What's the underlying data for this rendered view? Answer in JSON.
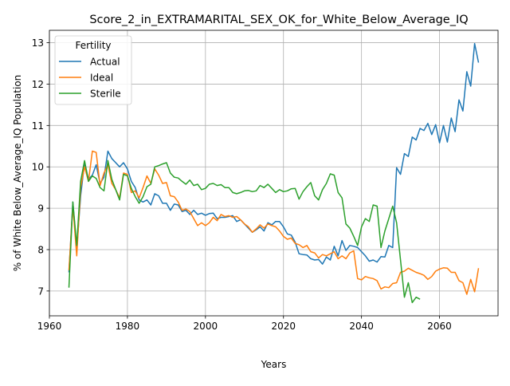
{
  "chart_data": {
    "type": "line",
    "title": "Score_2_in_EXTRAMARITAL_SEX_OK_for_White_Below_Average_IQ",
    "xlabel": "Years",
    "ylabel": "% of White Below_Average_IQ Population",
    "xlim": [
      1960,
      2075
    ],
    "ylim": [
      6.4,
      13.3
    ],
    "xticks": [
      1960,
      1980,
      2000,
      2020,
      2040,
      2060
    ],
    "yticks": [
      7,
      8,
      9,
      10,
      11,
      12,
      13
    ],
    "grid": true,
    "legend": {
      "title": "Fertility",
      "placement": "upper-left"
    },
    "series": [
      {
        "name": "Actual",
        "color": "#1f77b4",
        "x": [
          1965,
          1966,
          1967,
          1968,
          1969,
          1970,
          1971,
          1972,
          1973,
          1974,
          1975,
          1976,
          1977,
          1978,
          1979,
          1980,
          1981,
          1982,
          1983,
          1984,
          1985,
          1986,
          1987,
          1988,
          1989,
          1990,
          1991,
          1992,
          1993,
          1994,
          1995,
          1996,
          1997,
          1998,
          1999,
          2000,
          2001,
          2002,
          2003,
          2004,
          2005,
          2006,
          2007,
          2008,
          2009,
          2010,
          2011,
          2012,
          2013,
          2014,
          2015,
          2016,
          2017,
          2018,
          2019,
          2020,
          2021,
          2022,
          2023,
          2024,
          2025,
          2026,
          2027,
          2028,
          2029,
          2030,
          2031,
          2032,
          2033,
          2034,
          2035,
          2036,
          2037,
          2038,
          2039,
          2040,
          2041,
          2042,
          2043,
          2044,
          2045,
          2046,
          2047,
          2048,
          2049,
          2050,
          2051,
          2052,
          2053,
          2054,
          2055,
          2056,
          2057,
          2058,
          2059,
          2060,
          2061,
          2062,
          2063,
          2064,
          2065,
          2066,
          2067,
          2068,
          2069,
          2070
        ],
        "y": [
          7.45,
          9.15,
          8.0,
          9.3,
          10.1,
          9.7,
          9.8,
          10.05,
          9.6,
          9.75,
          10.38,
          10.2,
          10.1,
          10.0,
          10.1,
          9.95,
          9.65,
          9.5,
          9.2,
          9.15,
          9.2,
          9.08,
          9.35,
          9.3,
          9.12,
          9.12,
          8.95,
          9.1,
          9.08,
          8.92,
          8.95,
          8.85,
          8.95,
          8.85,
          8.88,
          8.83,
          8.87,
          8.88,
          8.75,
          8.78,
          8.78,
          8.8,
          8.82,
          8.68,
          8.72,
          8.62,
          8.52,
          8.42,
          8.48,
          8.55,
          8.45,
          8.65,
          8.6,
          8.68,
          8.68,
          8.55,
          8.38,
          8.35,
          8.18,
          7.9,
          7.88,
          7.87,
          7.78,
          7.75,
          7.76,
          7.65,
          7.82,
          7.75,
          8.08,
          7.85,
          8.22,
          7.98,
          8.1,
          8.08,
          8.05,
          7.95,
          7.85,
          7.72,
          7.75,
          7.7,
          7.83,
          7.82,
          8.1,
          8.05,
          9.98,
          9.82,
          10.32,
          10.25,
          10.72,
          10.65,
          10.93,
          10.88,
          11.05,
          10.78,
          11.02,
          10.58,
          11.0,
          10.6,
          11.18,
          10.85,
          11.62,
          11.35,
          12.3,
          11.95,
          12.98,
          12.52
        ]
      },
      {
        "name": "Ideal",
        "color": "#ff7f0e",
        "x": [
          1965,
          1966,
          1967,
          1968,
          1969,
          1970,
          1971,
          1972,
          1973,
          1974,
          1975,
          1976,
          1977,
          1978,
          1979,
          1980,
          1981,
          1982,
          1983,
          1984,
          1985,
          1986,
          1987,
          1988,
          1989,
          1990,
          1991,
          1992,
          1993,
          1994,
          1995,
          1996,
          1997,
          1998,
          1999,
          2000,
          2001,
          2002,
          2003,
          2004,
          2005,
          2006,
          2007,
          2008,
          2009,
          2010,
          2011,
          2012,
          2013,
          2014,
          2015,
          2016,
          2017,
          2018,
          2019,
          2020,
          2021,
          2022,
          2023,
          2024,
          2025,
          2026,
          2027,
          2028,
          2029,
          2030,
          2031,
          2032,
          2033,
          2034,
          2035,
          2036,
          2037,
          2038,
          2039,
          2040,
          2041,
          2042,
          2043,
          2044,
          2045,
          2046,
          2047,
          2048,
          2049,
          2050,
          2051,
          2052,
          2053,
          2054,
          2055,
          2056,
          2057,
          2058,
          2059,
          2060,
          2061,
          2062,
          2063,
          2064,
          2065,
          2066,
          2067,
          2068,
          2069,
          2070
        ],
        "y": [
          7.5,
          9.05,
          7.85,
          9.5,
          10.0,
          9.65,
          10.38,
          10.35,
          9.55,
          9.85,
          10.05,
          9.6,
          9.45,
          9.25,
          9.85,
          9.82,
          9.38,
          9.42,
          9.25,
          9.5,
          9.78,
          9.6,
          9.95,
          9.8,
          9.6,
          9.62,
          9.3,
          9.28,
          9.15,
          8.95,
          8.98,
          8.92,
          8.75,
          8.58,
          8.65,
          8.58,
          8.65,
          8.78,
          8.7,
          8.85,
          8.8,
          8.82,
          8.78,
          8.8,
          8.72,
          8.62,
          8.55,
          8.42,
          8.5,
          8.6,
          8.52,
          8.62,
          8.58,
          8.55,
          8.45,
          8.32,
          8.25,
          8.28,
          8.15,
          8.12,
          8.05,
          8.1,
          7.95,
          7.92,
          7.8,
          7.88,
          7.85,
          7.9,
          7.95,
          7.78,
          7.85,
          7.78,
          7.92,
          7.97,
          7.3,
          7.27,
          7.35,
          7.32,
          7.3,
          7.25,
          7.05,
          7.1,
          7.08,
          7.18,
          7.2,
          7.45,
          7.48,
          7.55,
          7.5,
          7.45,
          7.42,
          7.38,
          7.28,
          7.35,
          7.48,
          7.53,
          7.56,
          7.55,
          7.45,
          7.45,
          7.25,
          7.2,
          6.92,
          7.28,
          6.98,
          7.55
        ]
      },
      {
        "name": "Sterile",
        "color": "#2ca02c",
        "x": [
          1965,
          1966,
          1967,
          1968,
          1969,
          1970,
          1971,
          1972,
          1973,
          1974,
          1975,
          1976,
          1977,
          1978,
          1979,
          1980,
          1981,
          1982,
          1983,
          1984,
          1985,
          1986,
          1987,
          1988,
          1989,
          1990,
          1991,
          1992,
          1993,
          1994,
          1995,
          1996,
          1997,
          1998,
          1999,
          2000,
          2001,
          2002,
          2003,
          2004,
          2005,
          2006,
          2007,
          2008,
          2009,
          2010,
          2011,
          2012,
          2013,
          2014,
          2015,
          2016,
          2017,
          2018,
          2019,
          2020,
          2021,
          2022,
          2023,
          2024,
          2025,
          2026,
          2027,
          2028,
          2029,
          2030,
          2031,
          2032,
          2033,
          2034,
          2035,
          2036,
          2037,
          2038,
          2039,
          2040,
          2041,
          2042,
          2043,
          2044,
          2045,
          2046,
          2047,
          2048,
          2049,
          2050,
          2051,
          2052,
          2053,
          2054,
          2055
        ],
        "y": [
          7.08,
          9.15,
          8.1,
          9.65,
          10.15,
          9.65,
          9.78,
          9.72,
          9.5,
          9.42,
          10.15,
          9.7,
          9.45,
          9.2,
          9.82,
          9.78,
          9.48,
          9.28,
          9.12,
          9.28,
          9.52,
          9.58,
          10.0,
          10.03,
          10.07,
          10.1,
          9.85,
          9.75,
          9.73,
          9.65,
          9.58,
          9.68,
          9.55,
          9.58,
          9.45,
          9.48,
          9.58,
          9.6,
          9.55,
          9.57,
          9.5,
          9.5,
          9.38,
          9.35,
          9.38,
          9.42,
          9.43,
          9.4,
          9.42,
          9.55,
          9.5,
          9.58,
          9.48,
          9.38,
          9.45,
          9.4,
          9.42,
          9.47,
          9.48,
          9.22,
          9.4,
          9.52,
          9.62,
          9.3,
          9.2,
          9.45,
          9.6,
          9.83,
          9.8,
          9.38,
          9.25,
          8.62,
          8.52,
          8.32,
          8.1,
          8.55,
          8.75,
          8.68,
          9.08,
          9.05,
          8.05,
          8.45,
          8.75,
          9.05,
          8.65,
          7.75,
          6.85,
          7.2,
          6.72,
          6.85,
          6.8
        ]
      }
    ]
  }
}
